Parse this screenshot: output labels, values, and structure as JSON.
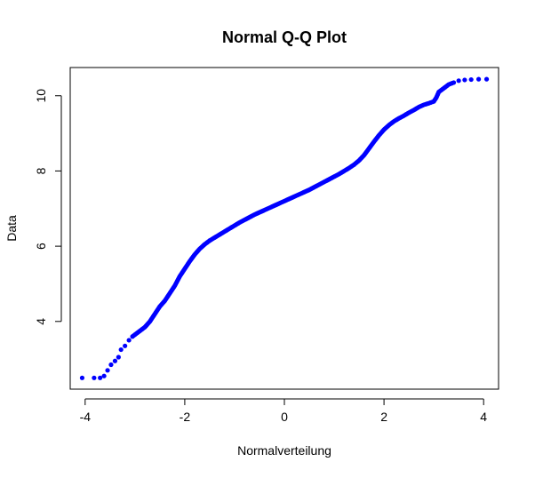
{
  "chart_data": {
    "type": "scatter",
    "title": "Normal Q-Q Plot",
    "xlabel": "Normalverteilung",
    "ylabel": "Data",
    "xlim": [
      -4.3,
      4.3
    ],
    "ylim": [
      2.2,
      10.75
    ],
    "x_ticks": [
      -4,
      -2,
      0,
      2,
      4
    ],
    "y_ticks": [
      4,
      6,
      8,
      10
    ],
    "grid": false,
    "legend": "none",
    "point_color": "#0000ff",
    "series": [
      {
        "points": [
          [
            -4.06,
            2.5
          ],
          [
            -3.82,
            2.5
          ],
          [
            -3.7,
            2.5
          ],
          [
            -3.62,
            2.55
          ],
          [
            -3.55,
            2.7
          ],
          [
            -3.48,
            2.85
          ],
          [
            -3.4,
            2.95
          ],
          [
            -3.33,
            3.05
          ],
          [
            -3.28,
            3.25
          ],
          [
            -3.2,
            3.35
          ],
          [
            -3.12,
            3.5
          ],
          [
            -3.05,
            3.6
          ],
          [
            -3.0,
            3.65
          ],
          [
            -2.9,
            3.75
          ],
          [
            -2.8,
            3.85
          ],
          [
            -2.7,
            4.0
          ],
          [
            -2.6,
            4.2
          ],
          [
            -2.5,
            4.4
          ],
          [
            -2.4,
            4.55
          ],
          [
            -2.3,
            4.75
          ],
          [
            -2.2,
            4.95
          ],
          [
            -2.1,
            5.2
          ],
          [
            -2.0,
            5.4
          ],
          [
            -1.9,
            5.6
          ],
          [
            -1.8,
            5.78
          ],
          [
            -1.7,
            5.93
          ],
          [
            -1.6,
            6.05
          ],
          [
            -1.5,
            6.15
          ],
          [
            -1.4,
            6.23
          ],
          [
            -1.3,
            6.31
          ],
          [
            -1.2,
            6.39
          ],
          [
            -1.1,
            6.47
          ],
          [
            -1.0,
            6.55
          ],
          [
            -0.9,
            6.63
          ],
          [
            -0.8,
            6.7
          ],
          [
            -0.7,
            6.77
          ],
          [
            -0.6,
            6.84
          ],
          [
            -0.5,
            6.9
          ],
          [
            -0.4,
            6.96
          ],
          [
            -0.3,
            7.02
          ],
          [
            -0.2,
            7.08
          ],
          [
            -0.1,
            7.14
          ],
          [
            0.0,
            7.2
          ],
          [
            0.1,
            7.26
          ],
          [
            0.2,
            7.32
          ],
          [
            0.3,
            7.38
          ],
          [
            0.4,
            7.44
          ],
          [
            0.5,
            7.5
          ],
          [
            0.6,
            7.57
          ],
          [
            0.7,
            7.64
          ],
          [
            0.8,
            7.71
          ],
          [
            0.9,
            7.78
          ],
          [
            1.0,
            7.85
          ],
          [
            1.1,
            7.92
          ],
          [
            1.2,
            8.0
          ],
          [
            1.3,
            8.08
          ],
          [
            1.4,
            8.17
          ],
          [
            1.5,
            8.28
          ],
          [
            1.6,
            8.42
          ],
          [
            1.7,
            8.6
          ],
          [
            1.8,
            8.78
          ],
          [
            1.9,
            8.95
          ],
          [
            2.0,
            9.1
          ],
          [
            2.1,
            9.22
          ],
          [
            2.2,
            9.32
          ],
          [
            2.3,
            9.4
          ],
          [
            2.4,
            9.47
          ],
          [
            2.5,
            9.55
          ],
          [
            2.6,
            9.62
          ],
          [
            2.7,
            9.7
          ],
          [
            2.8,
            9.76
          ],
          [
            2.9,
            9.8
          ],
          [
            3.0,
            9.85
          ],
          [
            3.05,
            9.95
          ],
          [
            3.1,
            10.1
          ],
          [
            3.2,
            10.2
          ],
          [
            3.3,
            10.3
          ],
          [
            3.4,
            10.35
          ],
          [
            3.5,
            10.4
          ],
          [
            3.62,
            10.42
          ],
          [
            3.75,
            10.43
          ],
          [
            3.9,
            10.44
          ],
          [
            4.06,
            10.44
          ]
        ]
      }
    ]
  }
}
